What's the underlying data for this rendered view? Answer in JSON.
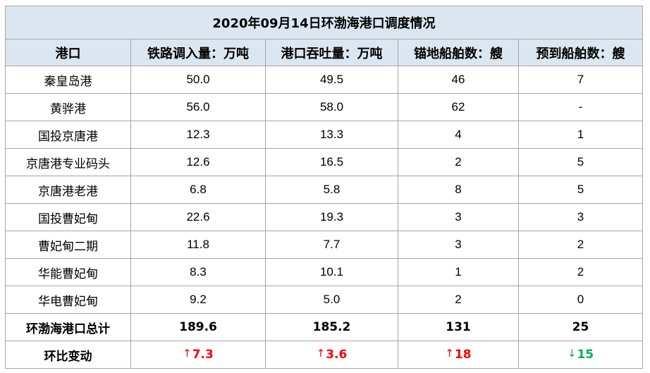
{
  "title": "2020年09月14日环渤海港口调度情况",
  "columns": [
    "港口",
    "铁路调入量：万吨",
    "港口吞吐量：万吨",
    "锚地船舶数：艘",
    "预到船舶数：艘"
  ],
  "rows": [
    {
      "port": "秦皇岛港",
      "rail_in": "50.0",
      "throughput": "49.5",
      "anchored": "46",
      "expected": "7"
    },
    {
      "port": "黄骅港",
      "rail_in": "56.0",
      "throughput": "58.0",
      "anchored": "62",
      "expected": "-"
    },
    {
      "port": "国投京唐港",
      "rail_in": "12.3",
      "throughput": "13.3",
      "anchored": "4",
      "expected": "1"
    },
    {
      "port": "京唐港专业码头",
      "rail_in": "12.6",
      "throughput": "16.5",
      "anchored": "2",
      "expected": "5"
    },
    {
      "port": "京唐港老港",
      "rail_in": "6.8",
      "throughput": "5.8",
      "anchored": "8",
      "expected": "5"
    },
    {
      "port": "国投曹妃甸",
      "rail_in": "22.6",
      "throughput": "19.3",
      "anchored": "3",
      "expected": "3"
    },
    {
      "port": "曹妃甸二期",
      "rail_in": "11.8",
      "throughput": "7.7",
      "anchored": "3",
      "expected": "2"
    },
    {
      "port": "华能曹妃甸",
      "rail_in": "8.3",
      "throughput": "10.1",
      "anchored": "1",
      "expected": "2"
    },
    {
      "port": "华电曹妃甸",
      "rail_in": "9.2",
      "throughput": "5.0",
      "anchored": "2",
      "expected": "0"
    }
  ],
  "total": {
    "label": "环渤海港口总计",
    "rail_in": "189.6",
    "throughput": "185.2",
    "anchored": "131",
    "expected": "25"
  },
  "change": {
    "label": "环比变动",
    "rail_in": {
      "arrow": "↑",
      "value": "7.3",
      "direction": "up"
    },
    "throughput": {
      "arrow": "↑",
      "value": "3.6",
      "direction": "up"
    },
    "anchored": {
      "arrow": "↑",
      "value": "18",
      "direction": "up"
    },
    "expected": {
      "arrow": "↓",
      "value": "15",
      "direction": "down"
    }
  },
  "colors": {
    "header_bg": "#dce6f1",
    "up": "#ff0000",
    "down": "#00b050",
    "border": "#a6a6a6"
  }
}
